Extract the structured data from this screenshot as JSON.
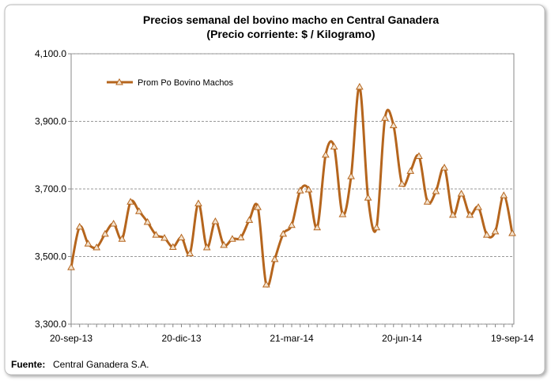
{
  "chart_data": {
    "type": "line",
    "title": "Precios semanal del bovino  macho en Central Ganadera",
    "subtitle": "(Precio corriente: $ / Kilogramo)",
    "categories": [
      "20-sep-13",
      null,
      null,
      null,
      null,
      null,
      null,
      null,
      null,
      null,
      null,
      null,
      null,
      "20-dic-13",
      null,
      null,
      null,
      null,
      null,
      null,
      null,
      null,
      null,
      null,
      null,
      null,
      "21-mar-14",
      null,
      null,
      null,
      null,
      null,
      null,
      null,
      null,
      null,
      null,
      null,
      null,
      "20-jun-14",
      null,
      null,
      null,
      null,
      null,
      null,
      null,
      null,
      null,
      null,
      null,
      null,
      "19-sep-14"
    ],
    "series": [
      {
        "name": "Prom Po Bovino Machos",
        "color": "#b5651d",
        "values": [
          3468,
          3588,
          3538,
          3527,
          3567,
          3597,
          3552,
          3662,
          3634,
          3602,
          3564,
          3555,
          3528,
          3556,
          3509,
          3657,
          3527,
          3604,
          3534,
          3552,
          3556,
          3608,
          3646,
          3417,
          3492,
          3567,
          3593,
          3695,
          3698,
          3586,
          3801,
          3825,
          3625,
          3737,
          4002,
          3674,
          3586,
          3910,
          3888,
          3715,
          3753,
          3797,
          3662,
          3693,
          3763,
          3623,
          3686,
          3623,
          3646,
          3564,
          3574,
          3681,
          3569
        ]
      }
    ],
    "ylim": [
      3300,
      4100
    ],
    "yticks": [
      {
        "value": 3300,
        "label": "3,300.0"
      },
      {
        "value": 3500,
        "label": "3,500.0"
      },
      {
        "value": 3700,
        "label": "3,700.0"
      },
      {
        "value": 3900,
        "label": "3,900.0"
      },
      {
        "value": 4100,
        "label": "4,100.0"
      }
    ],
    "grid": true,
    "legend": "upper left",
    "source_label": "Fuente:",
    "source": "Central Ganadera S.A."
  }
}
